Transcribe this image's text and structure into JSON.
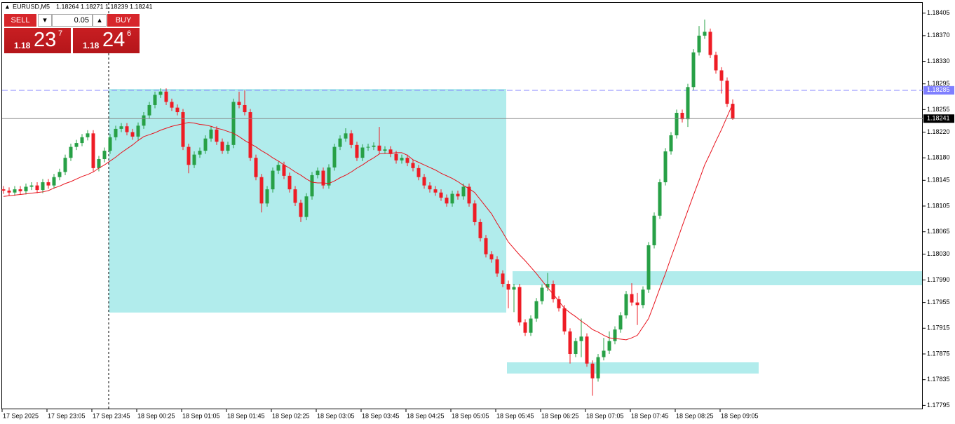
{
  "chart_data": {
    "type": "candlestick",
    "title": "EURUSD,M5",
    "up_color": "#27a046",
    "down_color": "#ee1c25",
    "categories": [
      "17 Sep 2025",
      null,
      null,
      null,
      null,
      null,
      null,
      null,
      "17 Sep 23:05",
      null,
      null,
      null,
      null,
      null,
      null,
      null,
      "17 Sep 23:45",
      null,
      null,
      null,
      null,
      null,
      null,
      null,
      "18 Sep 00:25",
      null,
      null,
      null,
      null,
      null,
      null,
      null,
      "18 Sep 01:05",
      null,
      null,
      null,
      null,
      null,
      null,
      null,
      "18 Sep 01:45",
      null,
      null,
      null,
      null,
      null,
      null,
      null,
      "18 Sep 02:25",
      null,
      null,
      null,
      null,
      null,
      null,
      null,
      "18 Sep 03:05",
      null,
      null,
      null,
      null,
      null,
      null,
      null,
      "18 Sep 03:45",
      null,
      null,
      null,
      null,
      null,
      null,
      null,
      "18 Sep 04:25",
      null,
      null,
      null,
      null,
      null,
      null,
      null,
      "18 Sep 05:05",
      null,
      null,
      null,
      null,
      null,
      null,
      null,
      "18 Sep 05:45",
      null,
      null,
      null,
      null,
      null,
      null,
      null,
      "18 Sep 06:25",
      null,
      null,
      null,
      null,
      null,
      null,
      null,
      "18 Sep 07:05",
      null,
      null,
      null,
      null,
      null,
      null,
      null,
      "18 Sep 07:45",
      null,
      null,
      null,
      null,
      null,
      null,
      null,
      "18 Sep 08:25",
      null,
      null,
      null,
      null,
      null,
      null,
      null,
      "18 Sep 09:05",
      null,
      null
    ],
    "open": [
      1.18131,
      1.18129,
      1.18126,
      1.18131,
      1.18128,
      1.18135,
      1.18137,
      1.1813,
      1.18142,
      1.18137,
      1.1815,
      1.18158,
      1.1818,
      1.18197,
      1.18203,
      1.18212,
      1.18218,
      1.18164,
      1.18178,
      1.18191,
      1.18212,
      1.18225,
      1.18229,
      1.1822,
      1.18213,
      1.1823,
      1.18246,
      1.18262,
      1.18278,
      1.18283,
      1.18267,
      1.18258,
      1.18251,
      1.18197,
      1.18169,
      1.18185,
      1.18191,
      1.1821,
      1.18224,
      1.18205,
      1.18191,
      1.182,
      1.18267,
      1.18262,
      1.18251,
      1.1818,
      1.1815,
      1.18109,
      1.18131,
      1.1816,
      1.18169,
      1.18152,
      1.18131,
      1.1811,
      1.18088,
      1.1812,
      1.18153,
      1.1816,
      1.18137,
      1.18165,
      1.18197,
      1.1821,
      1.18218,
      1.182,
      1.1818,
      1.18196,
      1.18197,
      1.18199,
      1.18191,
      1.18193,
      1.18186,
      1.18176,
      1.1818,
      1.18172,
      1.18164,
      1.1815,
      1.18137,
      1.18131,
      1.18126,
      1.18118,
      1.18109,
      1.18124,
      1.1812,
      1.18135,
      1.18109,
      1.1808,
      1.18055,
      1.1803,
      1.18022,
      1.18,
      1.17984,
      1.17975,
      1.17979,
      1.17924,
      1.17908,
      1.1793,
      1.17957,
      1.17978,
      1.17984,
      1.1796,
      1.17946,
      1.1791,
      1.17875,
      1.17895,
      1.17902,
      1.1786,
      1.17837,
      1.1787,
      1.1788,
      1.17895,
      1.17913,
      1.17935,
      1.17968,
      1.17955,
      1.17951,
      1.17975,
      1.18044,
      1.1809,
      1.18142,
      1.1819,
      1.18215,
      1.1825,
      1.1824,
      1.1829,
      1.18344,
      1.1837,
      1.18376,
      1.1834,
      1.18316,
      1.183,
      1.18264
    ],
    "high": [
      1.18136,
      1.18134,
      1.18136,
      1.18136,
      1.1814,
      1.18142,
      1.18142,
      1.18147,
      1.18147,
      1.18155,
      1.18163,
      1.18185,
      1.18202,
      1.18208,
      1.18217,
      1.18223,
      1.18223,
      1.18183,
      1.18196,
      1.18217,
      1.1823,
      1.18234,
      1.18234,
      1.18225,
      1.18235,
      1.18251,
      1.18267,
      1.18283,
      1.18288,
      1.18288,
      1.18272,
      1.18263,
      1.18256,
      1.18202,
      1.1819,
      1.18196,
      1.18215,
      1.18229,
      1.18229,
      1.1821,
      1.18205,
      1.18272,
      1.18283,
      1.18285,
      1.18256,
      1.18185,
      1.18155,
      1.18136,
      1.18165,
      1.18174,
      1.18174,
      1.18157,
      1.18136,
      1.18115,
      1.18125,
      1.18158,
      1.18165,
      1.18165,
      1.1817,
      1.18202,
      1.18215,
      1.18226,
      1.18223,
      1.18205,
      1.18201,
      1.18202,
      1.18204,
      1.18228,
      1.18198,
      1.18198,
      1.18191,
      1.18185,
      1.18185,
      1.18177,
      1.18169,
      1.18155,
      1.18142,
      1.18136,
      1.18131,
      1.18123,
      1.18129,
      1.18129,
      1.1814,
      1.1814,
      1.18114,
      1.18085,
      1.1806,
      1.18035,
      1.18027,
      1.18005,
      1.17989,
      1.17984,
      1.17984,
      1.17929,
      1.17935,
      1.17962,
      1.17983,
      1.18001,
      1.17989,
      1.17965,
      1.17951,
      1.17915,
      1.179,
      1.1793,
      1.17907,
      1.17865,
      1.17875,
      1.179,
      1.1791,
      1.17918,
      1.1794,
      1.17973,
      1.17985,
      1.1797,
      1.1798,
      1.18049,
      1.18095,
      1.18147,
      1.18195,
      1.1822,
      1.18255,
      1.18255,
      1.18295,
      1.18349,
      1.18385,
      1.18395,
      1.18381,
      1.18345,
      1.18321,
      1.18305,
      1.18271
    ],
    "low": [
      1.18124,
      1.18121,
      1.18121,
      1.18123,
      1.18123,
      1.1813,
      1.18125,
      1.18125,
      1.18132,
      1.18132,
      1.18145,
      1.18153,
      1.18175,
      1.18192,
      1.18198,
      1.18207,
      1.18159,
      1.18159,
      1.18173,
      1.18186,
      1.18207,
      1.1822,
      1.18215,
      1.18208,
      1.18208,
      1.18225,
      1.18241,
      1.18257,
      1.18273,
      1.18262,
      1.18253,
      1.18246,
      1.18192,
      1.18156,
      1.18164,
      1.1818,
      1.18186,
      1.18205,
      1.182,
      1.18186,
      1.18186,
      1.18195,
      1.18257,
      1.18246,
      1.18175,
      1.18145,
      1.18095,
      1.18104,
      1.18126,
      1.18155,
      1.18147,
      1.18126,
      1.18105,
      1.1808,
      1.18083,
      1.18115,
      1.18148,
      1.18132,
      1.18132,
      1.1816,
      1.18192,
      1.18205,
      1.18195,
      1.18175,
      1.18175,
      1.18191,
      1.18192,
      1.18186,
      1.18186,
      1.18181,
      1.18171,
      1.18171,
      1.18167,
      1.18159,
      1.18145,
      1.18132,
      1.18126,
      1.18121,
      1.18113,
      1.18104,
      1.18104,
      1.18115,
      1.18115,
      1.18104,
      1.18075,
      1.1805,
      1.18025,
      1.18017,
      1.17995,
      1.17979,
      1.17946,
      1.1794,
      1.17919,
      1.17903,
      1.17903,
      1.17925,
      1.17952,
      1.17973,
      1.17955,
      1.17941,
      1.17905,
      1.1786,
      1.1787,
      1.1787,
      1.17855,
      1.1781,
      1.17832,
      1.17865,
      1.17875,
      1.1789,
      1.17908,
      1.1793,
      1.1795,
      1.1792,
      1.17946,
      1.1797,
      1.18039,
      1.18085,
      1.18137,
      1.18185,
      1.1821,
      1.18235,
      1.18228,
      1.18285,
      1.18339,
      1.18365,
      1.18335,
      1.18311,
      1.1828,
      1.18259,
      1.18239
    ],
    "close": [
      1.18129,
      1.18126,
      1.18131,
      1.18128,
      1.18135,
      1.18137,
      1.1813,
      1.18142,
      1.18137,
      1.1815,
      1.18158,
      1.1818,
      1.18197,
      1.18203,
      1.18212,
      1.18218,
      1.18164,
      1.18178,
      1.18191,
      1.18212,
      1.18225,
      1.18229,
      1.1822,
      1.18213,
      1.1823,
      1.18246,
      1.18262,
      1.18278,
      1.18283,
      1.18267,
      1.18258,
      1.18251,
      1.18197,
      1.18169,
      1.18185,
      1.18191,
      1.1821,
      1.18224,
      1.18205,
      1.18191,
      1.182,
      1.18267,
      1.18262,
      1.18251,
      1.1818,
      1.1815,
      1.18109,
      1.18131,
      1.1816,
      1.18169,
      1.18152,
      1.18131,
      1.1811,
      1.18088,
      1.1812,
      1.18153,
      1.1816,
      1.18137,
      1.18165,
      1.18197,
      1.1821,
      1.18218,
      1.182,
      1.1818,
      1.18196,
      1.18197,
      1.18199,
      1.18191,
      1.18193,
      1.18186,
      1.18176,
      1.1818,
      1.18172,
      1.18164,
      1.1815,
      1.18137,
      1.18131,
      1.18126,
      1.18118,
      1.18109,
      1.18124,
      1.1812,
      1.18135,
      1.18109,
      1.1808,
      1.18055,
      1.1803,
      1.18022,
      1.18,
      1.17984,
      1.17975,
      1.17979,
      1.17924,
      1.17908,
      1.1793,
      1.17957,
      1.17978,
      1.17984,
      1.1796,
      1.17946,
      1.1791,
      1.17875,
      1.17895,
      1.17902,
      1.1786,
      1.17837,
      1.1787,
      1.1788,
      1.17895,
      1.17913,
      1.17935,
      1.17968,
      1.17955,
      1.17951,
      1.17975,
      1.18044,
      1.1809,
      1.18142,
      1.1819,
      1.18215,
      1.1825,
      1.1824,
      1.1829,
      1.18344,
      1.1837,
      1.18376,
      1.1834,
      1.18316,
      1.183,
      1.18264,
      1.18241
    ],
    "ma": {
      "color": "#e8121c",
      "values": [
        1.1812,
        1.18121,
        1.18122,
        1.18123,
        1.18124,
        1.18125,
        1.18126,
        1.18127,
        1.18129,
        1.18133,
        1.18136,
        1.1814,
        1.18143,
        1.18147,
        1.18151,
        1.18154,
        1.18158,
        1.18164,
        1.18169,
        1.18175,
        1.18181,
        1.18188,
        1.18194,
        1.182,
        1.18207,
        1.18213,
        1.18216,
        1.18219,
        1.18223,
        1.18226,
        1.18229,
        1.18231,
        1.18233,
        1.18235,
        1.18234,
        1.18232,
        1.18231,
        1.18229,
        1.18226,
        1.18224,
        1.18221,
        1.18218,
        1.18213,
        1.18207,
        1.18202,
        1.18197,
        1.18191,
        1.18186,
        1.1818,
        1.18175,
        1.18169,
        1.18164,
        1.18158,
        1.18153,
        1.18147,
        1.18142,
        1.18141,
        1.18141,
        1.1814,
        1.18144,
        1.18149,
        1.18153,
        1.18158,
        1.18164,
        1.18169,
        1.18175,
        1.1818,
        1.18186,
        1.18187,
        1.18187,
        1.18188,
        1.18188,
        1.18184,
        1.18177,
        1.18173,
        1.18169,
        1.18165,
        1.18161,
        1.18156,
        1.18152,
        1.18148,
        1.18143,
        1.18137,
        1.18132,
        1.18126,
        1.18115,
        1.18104,
        1.18093,
        1.18078,
        1.18064,
        1.18049,
        1.18039,
        1.18029,
        1.1802,
        1.1801,
        1.18,
        1.17989,
        1.17978,
        1.17968,
        1.17957,
        1.17946,
        1.17939,
        1.17933,
        1.17926,
        1.1792,
        1.17913,
        1.17909,
        1.17904,
        1.179,
        1.17899,
        1.17898,
        1.17897,
        1.179,
        1.17904,
        1.17917,
        1.1793,
        1.17953,
        1.17977,
        1.18,
        1.18025,
        1.18049,
        1.18074,
        1.18098,
        1.18122,
        1.18145,
        1.18169,
        1.18187,
        1.18206,
        1.18224,
        1.18244,
        1.18264
      ]
    },
    "hline": {
      "value": 1.18285,
      "color": "#7f7fff"
    },
    "ylim": [
      1.1779,
      1.1842
    ],
    "yticks": [
      1.18405,
      {
        "value": 1.1837,
        "label": "1.18370"
      },
      {
        "value": 1.1833,
        "label": "1.18330"
      },
      1.18295,
      1.18255,
      {
        "value": 1.1822,
        "label": "1.18220"
      },
      {
        "value": 1.1818,
        "label": "1.18180"
      },
      1.18145,
      1.18105,
      1.18065,
      {
        "value": 1.1803,
        "label": "1.18030"
      },
      {
        "value": 1.1799,
        "label": "1.17990"
      },
      1.17955,
      1.17915,
      1.17875,
      1.17835,
      1.17795
    ],
    "grid": false
  },
  "trade_panel": {
    "sell": "SELL",
    "buy": "BUY",
    "lot": 0.05,
    "sell_price": {
      "prefix": "1.18",
      "big": "23",
      "small": "7"
    },
    "buy_price": {
      "prefix": "1.18",
      "big": "24",
      "small": "6"
    }
  }
}
